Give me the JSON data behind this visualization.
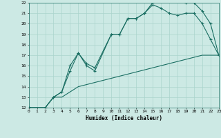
{
  "xlabel": "Humidex (Indice chaleur)",
  "xlim": [
    0,
    23
  ],
  "ylim": [
    12,
    22
  ],
  "xticks": [
    0,
    1,
    2,
    3,
    4,
    5,
    6,
    7,
    8,
    9,
    10,
    11,
    12,
    13,
    14,
    15,
    16,
    17,
    18,
    19,
    20,
    21,
    22,
    23
  ],
  "yticks": [
    12,
    13,
    14,
    15,
    16,
    17,
    18,
    19,
    20,
    21,
    22
  ],
  "bg_color": "#cce9e4",
  "line_color": "#1a6e62",
  "grid_color": "#aad4cc",
  "line1_x": [
    0,
    1,
    2,
    3,
    4,
    5,
    6,
    7,
    8,
    9,
    10,
    11,
    12,
    13,
    14,
    15,
    16,
    17,
    18,
    19,
    20,
    21,
    22,
    23
  ],
  "line1_y": [
    12,
    12,
    12,
    13,
    13,
    13.5,
    14,
    14.2,
    14.4,
    14.6,
    14.8,
    15,
    15.2,
    15.4,
    15.6,
    15.8,
    16,
    16.2,
    16.4,
    16.6,
    16.8,
    17,
    17,
    17
  ],
  "line2_x": [
    0,
    2,
    3,
    4,
    5,
    6,
    7,
    8,
    10,
    11,
    12,
    13,
    14,
    15,
    16,
    17,
    18,
    19,
    20,
    21,
    22,
    23
  ],
  "line2_y": [
    12,
    12,
    13,
    13.5,
    16,
    17.2,
    16.2,
    15.8,
    19,
    19,
    20.5,
    20.5,
    21,
    22,
    22.2,
    22.2,
    22.2,
    22,
    22,
    21.2,
    20,
    17
  ],
  "line3_x": [
    0,
    2,
    3,
    4,
    5,
    6,
    7,
    8,
    10,
    11,
    12,
    13,
    14,
    15,
    16,
    17,
    18,
    19,
    20,
    21,
    22,
    23
  ],
  "line3_y": [
    12,
    12,
    13,
    13.5,
    15.5,
    17.2,
    16,
    15.5,
    19,
    19,
    20.5,
    20.5,
    21,
    21.8,
    21.5,
    21,
    20.8,
    21,
    21,
    20,
    18.5,
    17
  ]
}
